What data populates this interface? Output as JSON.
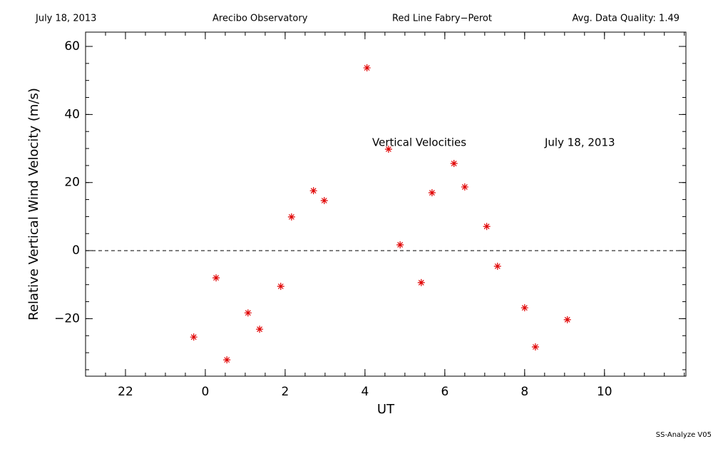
{
  "chart_data": {
    "type": "scatter",
    "header": [
      "July 18, 2013",
      "Arecibo Observatory",
      "Red Line Fabry−Perot",
      "Avg. Data Quality: 1.49"
    ],
    "annotations": [
      "Vertical Velocities",
      "July 18, 2013"
    ],
    "footer": "SS-Analyze V05",
    "x_label": "UT",
    "y_label": "Relative Vertical Wind Velocity (m/s)",
    "xlim": [
      -3,
      12.04
    ],
    "ylim": [
      -36.9,
      64.2
    ],
    "xticks": [
      {
        "value": -2,
        "label": "22"
      },
      0,
      2,
      4,
      6,
      8,
      10
    ],
    "yticks": [
      {
        "value": -20,
        "label": "−20"
      },
      0,
      20,
      40,
      60
    ],
    "reference_line": 0,
    "color": "#e00000",
    "x": [
      -0.29,
      0.27,
      0.54,
      1.07,
      1.36,
      1.89,
      2.16,
      2.71,
      2.98,
      4.05,
      4.59,
      4.88,
      5.41,
      5.68,
      6.23,
      6.5,
      7.05,
      7.32,
      8.0,
      8.27,
      9.07
    ],
    "values": [
      -25.4,
      -8.0,
      -32.1,
      -18.3,
      -23.1,
      -10.5,
      9.9,
      17.6,
      14.7,
      53.7,
      29.8,
      1.7,
      -9.4,
      17.0,
      25.6,
      18.7,
      7.1,
      -4.6,
      -16.8,
      -28.3,
      -20.3
    ]
  }
}
